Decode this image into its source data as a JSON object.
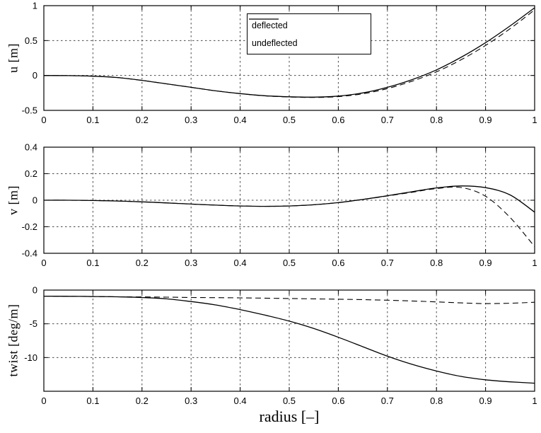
{
  "figure": {
    "background": "#ffffff",
    "line_color": "#000000"
  },
  "chart_data": [
    {
      "type": "line",
      "title": "",
      "xlabel": "",
      "ylabel": "u [m]",
      "xlim": [
        0,
        1
      ],
      "ylim": [
        -0.5,
        1
      ],
      "xticks": [
        "0",
        "0.1",
        "0.2",
        "0.3",
        "0.4",
        "0.5",
        "0.6",
        "0.7",
        "0.8",
        "0.9",
        "1"
      ],
      "yticks": [
        "1",
        "0.5",
        "0",
        "-0.5"
      ],
      "grid": true,
      "legend": {
        "visible": true,
        "position": "top-center",
        "entries": [
          "deflected",
          "undeflected"
        ]
      },
      "x": [
        0,
        0.05,
        0.1,
        0.15,
        0.2,
        0.25,
        0.3,
        0.35,
        0.4,
        0.45,
        0.5,
        0.55,
        0.6,
        0.65,
        0.7,
        0.75,
        0.8,
        0.85,
        0.9,
        0.95,
        1
      ],
      "series": [
        {
          "name": "deflected",
          "style": "solid",
          "y": [
            0,
            -0.002,
            -0.01,
            -0.03,
            -0.07,
            -0.12,
            -0.17,
            -0.22,
            -0.26,
            -0.29,
            -0.305,
            -0.31,
            -0.295,
            -0.25,
            -0.17,
            -0.06,
            0.08,
            0.26,
            0.47,
            0.71,
            0.97
          ]
        },
        {
          "name": "undeflected",
          "style": "dashed",
          "y": [
            0,
            -0.002,
            -0.01,
            -0.03,
            -0.07,
            -0.12,
            -0.17,
            -0.22,
            -0.26,
            -0.292,
            -0.308,
            -0.315,
            -0.303,
            -0.262,
            -0.188,
            -0.082,
            0.052,
            0.225,
            0.43,
            0.67,
            0.94
          ]
        }
      ]
    },
    {
      "type": "line",
      "title": "",
      "xlabel": "",
      "ylabel": "v [m]",
      "xlim": [
        0,
        1
      ],
      "ylim": [
        -0.4,
        0.4
      ],
      "xticks": [
        "0",
        "0.1",
        "0.2",
        "0.3",
        "0.4",
        "0.5",
        "0.6",
        "0.7",
        "0.8",
        "0.9",
        "1"
      ],
      "yticks": [
        "0.4",
        "0.2",
        "0",
        "-0.2",
        "-0.4"
      ],
      "grid": true,
      "legend": {
        "visible": false
      },
      "x": [
        0,
        0.05,
        0.1,
        0.15,
        0.2,
        0.25,
        0.3,
        0.35,
        0.4,
        0.45,
        0.5,
        0.55,
        0.6,
        0.65,
        0.7,
        0.75,
        0.8,
        0.85,
        0.9,
        0.95,
        1
      ],
      "series": [
        {
          "name": "deflected",
          "style": "solid",
          "y": [
            0,
            0,
            -0.002,
            -0.006,
            -0.012,
            -0.02,
            -0.029,
            -0.037,
            -0.043,
            -0.046,
            -0.043,
            -0.034,
            -0.018,
            0.006,
            0.034,
            0.064,
            0.093,
            0.108,
            0.095,
            0.04,
            -0.09
          ]
        },
        {
          "name": "undeflected",
          "style": "dashed",
          "y": [
            0,
            0,
            -0.002,
            -0.006,
            -0.012,
            -0.02,
            -0.029,
            -0.037,
            -0.043,
            -0.046,
            -0.043,
            -0.034,
            -0.018,
            0.006,
            0.032,
            0.06,
            0.088,
            0.096,
            0.03,
            -0.13,
            -0.35
          ]
        }
      ]
    },
    {
      "type": "line",
      "title": "",
      "xlabel": "radius [–]",
      "ylabel": "twist [deg/m]",
      "xlim": [
        0,
        1
      ],
      "ylim": [
        -15,
        0
      ],
      "xticks": [
        "0",
        "0.1",
        "0.2",
        "0.3",
        "0.4",
        "0.5",
        "0.6",
        "0.7",
        "0.8",
        "0.9",
        "1"
      ],
      "yticks": [
        "0",
        "-5",
        "-10"
      ],
      "grid": true,
      "legend": {
        "visible": false
      },
      "x": [
        0,
        0.05,
        0.1,
        0.15,
        0.2,
        0.25,
        0.3,
        0.35,
        0.4,
        0.45,
        0.5,
        0.55,
        0.6,
        0.65,
        0.7,
        0.75,
        0.8,
        0.85,
        0.9,
        0.95,
        1
      ],
      "series": [
        {
          "name": "deflected",
          "style": "solid",
          "y": [
            -0.9,
            -0.92,
            -0.95,
            -1.0,
            -1.1,
            -1.3,
            -1.7,
            -2.2,
            -2.9,
            -3.7,
            -4.6,
            -5.7,
            -7.0,
            -8.4,
            -9.8,
            -11.0,
            -12.0,
            -12.8,
            -13.3,
            -13.6,
            -13.8
          ]
        },
        {
          "name": "undeflected",
          "style": "dashed",
          "y": [
            -0.9,
            -0.92,
            -0.95,
            -1.0,
            -1.02,
            -1.05,
            -1.1,
            -1.12,
            -1.15,
            -1.2,
            -1.25,
            -1.3,
            -1.35,
            -1.42,
            -1.5,
            -1.62,
            -1.75,
            -1.9,
            -2.0,
            -1.95,
            -1.8
          ]
        }
      ]
    }
  ]
}
